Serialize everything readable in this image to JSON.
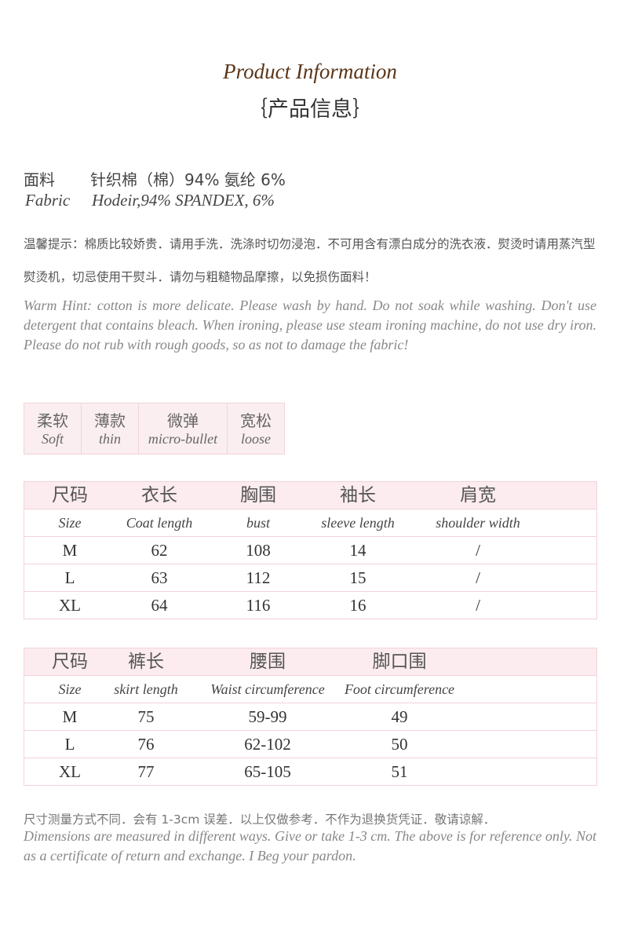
{
  "header": {
    "title": "Product Information",
    "subtitle": "｛产品信息｝"
  },
  "fabric": {
    "label_cn": "面料",
    "value_cn": "针织棉（棉）94% 氨纶 6%",
    "label_en": "Fabric",
    "value_en": "Hodeir,94% SPANDEX, 6%"
  },
  "hint_cn": "温馨提示：棉质比较娇贵．请用手洗．洗涤时切勿浸泡．不可用含有漂白成分的洗衣液．熨烫时请用蒸汽型熨烫机，切忌使用干熨斗．请勿与粗糙物品摩擦，以免损伤面料！",
  "hint_en": "Warm Hint: cotton is more delicate. Please wash by hand. Do not soak while washing. Don't use detergent that contains bleach. When ironing, please use steam ironing machine, do not use dry iron. Please do not rub with rough goods, so as not to damage the fabric!",
  "features": [
    {
      "cn": "柔软",
      "en": "Soft"
    },
    {
      "cn": "薄款",
      "en": "thin"
    },
    {
      "cn": "微弹",
      "en": "micro-bullet"
    },
    {
      "cn": "宽松",
      "en": "loose"
    }
  ],
  "top_table": {
    "header_cn": [
      "尺码",
      "衣长",
      "胸围",
      "袖长",
      "肩宽"
    ],
    "header_en": [
      "Size",
      "Coat length",
      "bust",
      "sleeve length",
      "shoulder width"
    ],
    "rows": [
      [
        "M",
        "62",
        "108",
        "14",
        "/"
      ],
      [
        "L",
        "63",
        "112",
        "15",
        "/"
      ],
      [
        "XL",
        "64",
        "116",
        "16",
        "/"
      ]
    ]
  },
  "bottom_table": {
    "header_cn": [
      "尺码",
      "裤长",
      "腰围",
      "脚口围"
    ],
    "header_en": [
      "Size",
      "skirt length",
      "Waist circumference",
      "Foot circumference"
    ],
    "rows": [
      [
        "M",
        "75",
        "59-99",
        "49"
      ],
      [
        "L",
        "76",
        "62-102",
        "50"
      ],
      [
        "XL",
        "77",
        "65-105",
        "51"
      ]
    ]
  },
  "note_cn": "尺寸测量方式不同．会有 1-3cm 误差．以上仅做参考．不作为退换货凭证．敬请谅解．",
  "note_en": "Dimensions are measured in different ways. Give or take 1-3 cm. The above is for reference only. Not as a certificate of return and exchange. I Beg your pardon."
}
